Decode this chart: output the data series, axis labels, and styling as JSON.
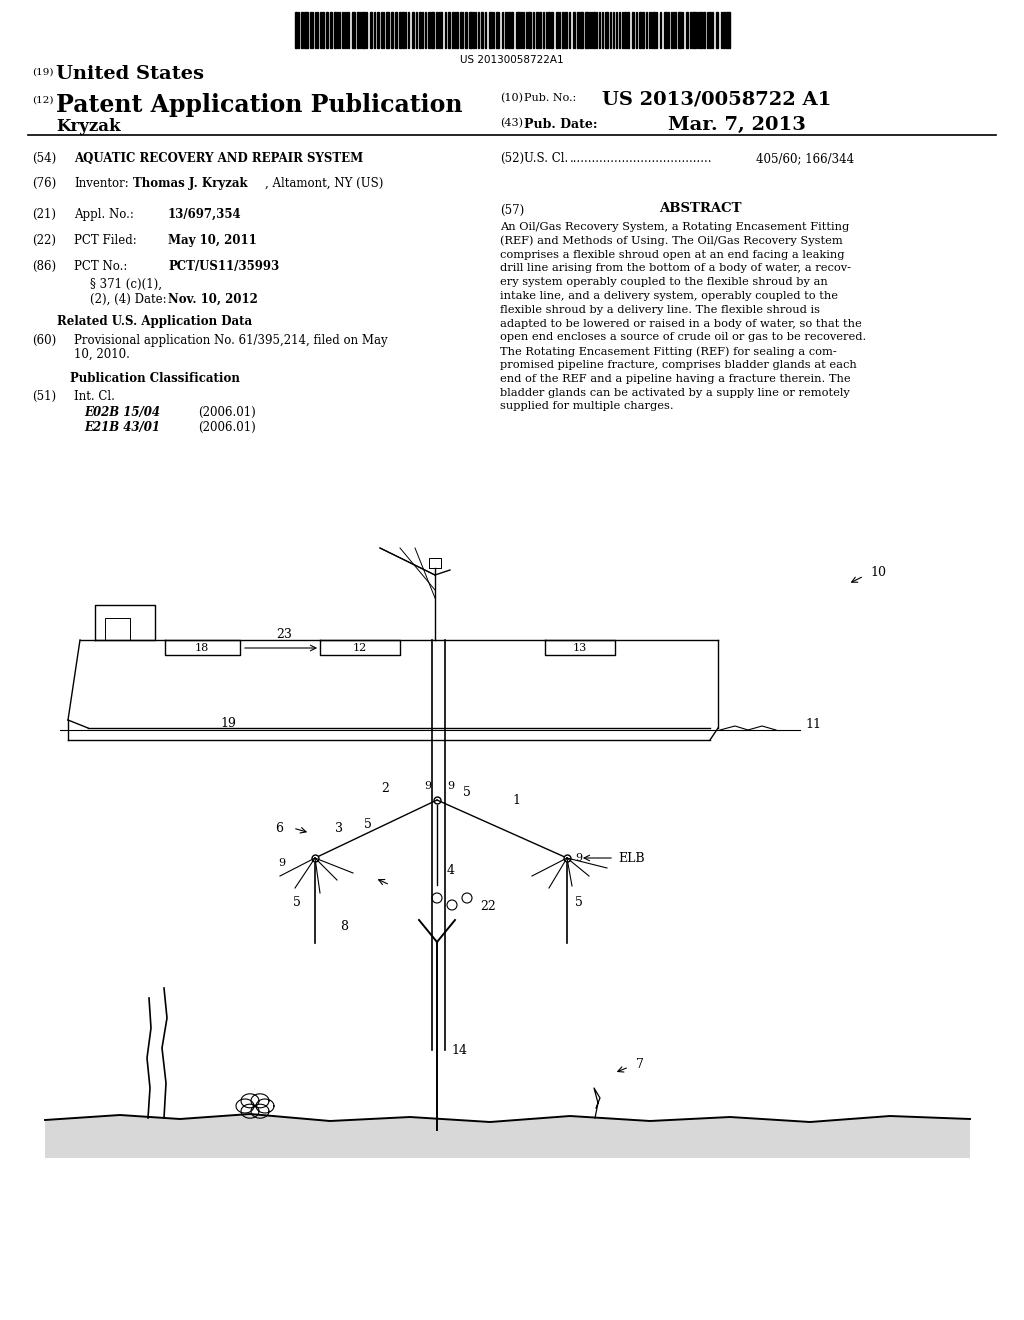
{
  "background_color": "#ffffff",
  "barcode_text": "US 20130058722A1",
  "abstract_text": "An Oil/Gas Recovery System, a Rotating Encasement Fitting (REF) and Methods of Using. The Oil/Gas Recovery System comprises a flexible shroud open at an end facing a leaking drill line arising from the bottom of a body of water, a recov-ery system operably coupled to the flexible shroud by an intake line, and a delivery system, operably coupled to the flexible shroud by a delivery line. The flexible shroud is adapted to be lowered or raised in a body of water, so that the open end encloses a source of crude oil or gas to be recovered. The Rotating Encasement Fitting (REF) for sealing a com-promised pipeline fracture, comprises bladder glands at each end of the REF and a pipeline having a fracture therein. The bladder glands can be activated by a supply line or remotely supplied for multiple charges."
}
